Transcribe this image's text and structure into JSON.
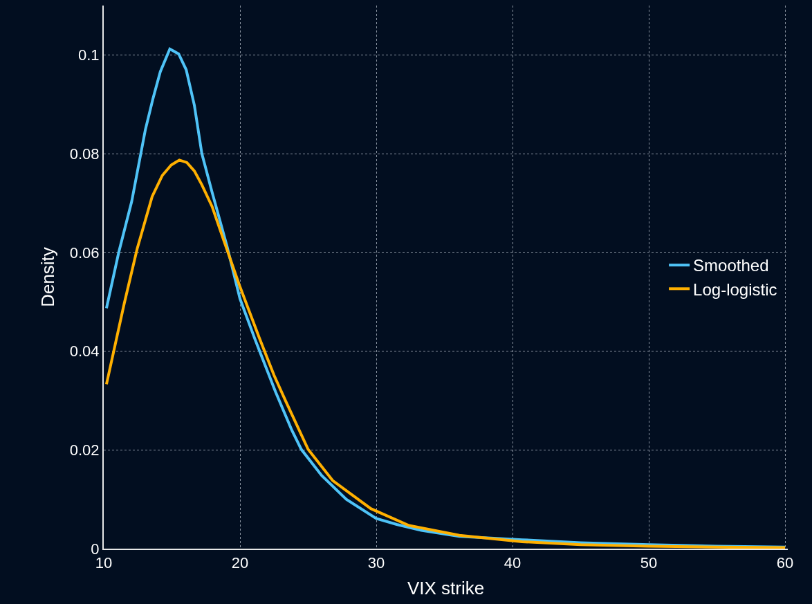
{
  "chart_data": {
    "type": "line",
    "xlabel": "VIX strike",
    "ylabel": "Density",
    "xlim": [
      10,
      60.2
    ],
    "ylim": [
      0,
      0.11
    ],
    "xticks": [
      10,
      20,
      30,
      40,
      50,
      60
    ],
    "yticks": [
      0,
      {
        "value": 0.02,
        "label": "0.02"
      },
      {
        "value": 0.04,
        "label": "0.04"
      },
      {
        "value": 0.06,
        "label": "0.06"
      },
      {
        "value": 0.08,
        "label": "0.08"
      },
      0.1
    ],
    "grid": true,
    "legend": "right",
    "marker": "none",
    "line_style": "solid",
    "series": [
      {
        "name": "Smoothed",
        "color": "#4fc3f7",
        "x": [
          10.2,
          11.1,
          12.05,
          13.05,
          13.6,
          14.15,
          14.85,
          15.5,
          16.05,
          16.65,
          17.2,
          17.95,
          19.05,
          20.0,
          21.1,
          22.6,
          23.8,
          24.5,
          26.0,
          27.8,
          30.0,
          31.5,
          33.3,
          36.1,
          40.7,
          45,
          50,
          55,
          60
        ],
        "values": [
          0.0487,
          0.06,
          0.0703,
          0.0848,
          0.091,
          0.0966,
          0.1012,
          0.1002,
          0.097,
          0.0898,
          0.08,
          0.0722,
          0.0612,
          0.0506,
          0.0424,
          0.0318,
          0.024,
          0.0201,
          0.0148,
          0.01,
          0.0061,
          0.0049,
          0.0037,
          0.0025,
          0.0018,
          0.0012,
          0.0008,
          0.0005,
          0.0003
        ]
      },
      {
        "name": "Log-logistic",
        "color": "#ffb000",
        "x": [
          10.2,
          11.5,
          12.45,
          13.55,
          14.3,
          14.95,
          15.55,
          16.1,
          16.65,
          17.2,
          17.95,
          18.85,
          19.95,
          21.4,
          22.5,
          23.35,
          25.0,
          26.8,
          29.6,
          32.4,
          36.1,
          40.7,
          45,
          50,
          55,
          60
        ],
        "values": [
          0.0333,
          0.0496,
          0.0607,
          0.0713,
          0.0756,
          0.0777,
          0.0787,
          0.0782,
          0.0765,
          0.0737,
          0.0693,
          0.0621,
          0.0534,
          0.0428,
          0.0351,
          0.0299,
          0.0201,
          0.0138,
          0.0081,
          0.0047,
          0.0027,
          0.0014,
          0.0008,
          0.0005,
          0.0003,
          0.0002
        ]
      }
    ]
  }
}
